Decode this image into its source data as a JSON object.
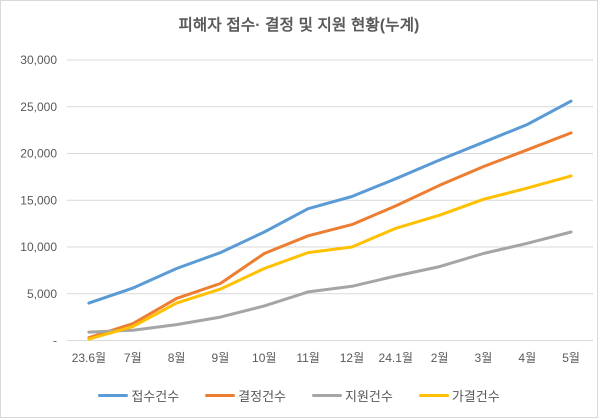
{
  "chart_data": {
    "type": "line",
    "title": "피해자 접수· 결정 및 지원 현황(누계)",
    "categories": [
      "23.6월",
      "7월",
      "8월",
      "9월",
      "10월",
      "11월",
      "12월",
      "24.1월",
      "2월",
      "3월",
      "4월",
      "5월"
    ],
    "series": [
      {
        "id": "reception-count",
        "name": "접수건수",
        "color": "#5B9BD5",
        "values": [
          4000,
          5600,
          7700,
          9400,
          11600,
          14100,
          15400,
          17300,
          19300,
          21200,
          23100,
          25600
        ]
      },
      {
        "id": "decision-count",
        "name": "결정건수",
        "color": "#ED7D31",
        "values": [
          300,
          1800,
          4500,
          6100,
          9300,
          11200,
          12400,
          14400,
          16600,
          18600,
          20400,
          22200
        ]
      },
      {
        "id": "support-count",
        "name": "지원건수",
        "color": "#A5A5A5",
        "values": [
          900,
          1100,
          1700,
          2500,
          3700,
          5200,
          5800,
          6900,
          7900,
          9300,
          10400,
          11600
        ]
      },
      {
        "id": "approved-count",
        "name": "가결건수",
        "color": "#FFC000",
        "values": [
          150,
          1500,
          4000,
          5500,
          7700,
          9400,
          10000,
          12000,
          13400,
          15100,
          16300,
          17600
        ]
      }
    ],
    "ylim": [
      0,
      30000
    ],
    "ytick_interval": 5000,
    "ytick_labels": [
      "-",
      "5,000",
      "10,000",
      "15,000",
      "20,000",
      "25,000",
      "30,000"
    ],
    "grid": true,
    "legend_position": "bottom",
    "colors": {
      "grid": "#d9d9d9",
      "axis_text": "#595959",
      "title_text": "#595959"
    }
  }
}
